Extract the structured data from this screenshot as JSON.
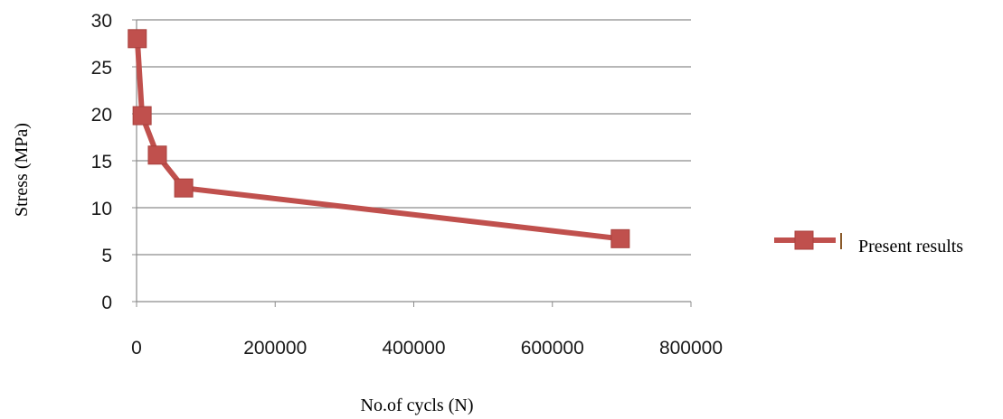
{
  "chart_data": {
    "type": "line",
    "xlabel": "No.of cycls (N)",
    "ylabel": "Stress (MPa)",
    "xlim": [
      0,
      800000
    ],
    "ylim": [
      0,
      30
    ],
    "x_ticks": [
      0,
      200000,
      400000,
      600000,
      800000
    ],
    "x_tick_labels": [
      "0",
      "200000",
      "400000",
      "600000",
      "800000"
    ],
    "y_ticks": [
      0,
      5,
      10,
      15,
      20,
      25,
      30
    ],
    "y_tick_labels": [
      "0",
      "5",
      "10",
      "15",
      "20",
      "25",
      "30"
    ],
    "grid": "horizontal",
    "legend_position": "right",
    "series": [
      {
        "name": "Present results",
        "color": "#c0504d",
        "marker": "square",
        "x": [
          1000,
          8000,
          30000,
          68000,
          698000
        ],
        "y": [
          28,
          19.8,
          15.6,
          12.1,
          6.7
        ]
      }
    ]
  }
}
